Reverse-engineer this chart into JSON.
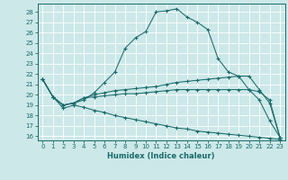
{
  "xlabel": "Humidex (Indice chaleur)",
  "bg_color": "#cce8e8",
  "line_color": "#1a6b6b",
  "grid_color": "#ffffff",
  "xlim_min": -0.5,
  "xlim_max": 23.5,
  "ylim_min": 15.6,
  "ylim_max": 28.8,
  "yticks": [
    16,
    17,
    18,
    19,
    20,
    21,
    22,
    23,
    24,
    25,
    26,
    27,
    28
  ],
  "xticks": [
    0,
    1,
    2,
    3,
    4,
    5,
    6,
    7,
    8,
    9,
    10,
    11,
    12,
    13,
    14,
    15,
    16,
    17,
    18,
    19,
    20,
    21,
    22,
    23
  ],
  "curve1_x": [
    0,
    1,
    2,
    3,
    4,
    5,
    6,
    7,
    8,
    9,
    10,
    11,
    12,
    13,
    14,
    15,
    16,
    17,
    18,
    19,
    20,
    21,
    22,
    23
  ],
  "curve1_y": [
    21.5,
    19.8,
    19.0,
    19.2,
    19.5,
    20.2,
    21.2,
    22.2,
    24.5,
    25.5,
    26.1,
    28.0,
    28.1,
    28.3,
    27.5,
    27.0,
    26.3,
    23.5,
    22.2,
    21.8,
    20.5,
    19.5,
    17.5,
    15.9
  ],
  "curve2_x": [
    0,
    1,
    2,
    3,
    4,
    5,
    6,
    7,
    8,
    9,
    10,
    11,
    12,
    13,
    14,
    15,
    16,
    17,
    18,
    19,
    20,
    21,
    22,
    23
  ],
  "curve2_y": [
    21.5,
    19.8,
    19.0,
    19.2,
    19.7,
    20.0,
    20.2,
    20.4,
    20.5,
    20.6,
    20.7,
    20.8,
    21.0,
    21.2,
    21.3,
    21.4,
    21.5,
    21.6,
    21.7,
    21.8,
    21.8,
    20.5,
    19.2,
    15.9
  ],
  "curve3_x": [
    0,
    1,
    2,
    3,
    4,
    5,
    6,
    7,
    8,
    9,
    10,
    11,
    12,
    13,
    14,
    15,
    16,
    17,
    18,
    19,
    20,
    21,
    22,
    23
  ],
  "curve3_y": [
    21.5,
    19.8,
    19.0,
    19.2,
    19.7,
    19.8,
    19.9,
    20.0,
    20.1,
    20.1,
    20.2,
    20.3,
    20.4,
    20.5,
    20.5,
    20.5,
    20.5,
    20.5,
    20.5,
    20.5,
    20.5,
    20.3,
    19.5,
    15.9
  ],
  "curve4_x": [
    0,
    1,
    2,
    3,
    4,
    5,
    6,
    7,
    8,
    9,
    10,
    11,
    12,
    13,
    14,
    15,
    16,
    17,
    18,
    19,
    20,
    21,
    22,
    23
  ],
  "curve4_y": [
    21.5,
    19.8,
    18.7,
    19.0,
    18.8,
    18.5,
    18.3,
    18.0,
    17.8,
    17.6,
    17.4,
    17.2,
    17.0,
    16.8,
    16.7,
    16.5,
    16.4,
    16.3,
    16.2,
    16.1,
    16.0,
    15.9,
    15.8,
    15.7
  ]
}
